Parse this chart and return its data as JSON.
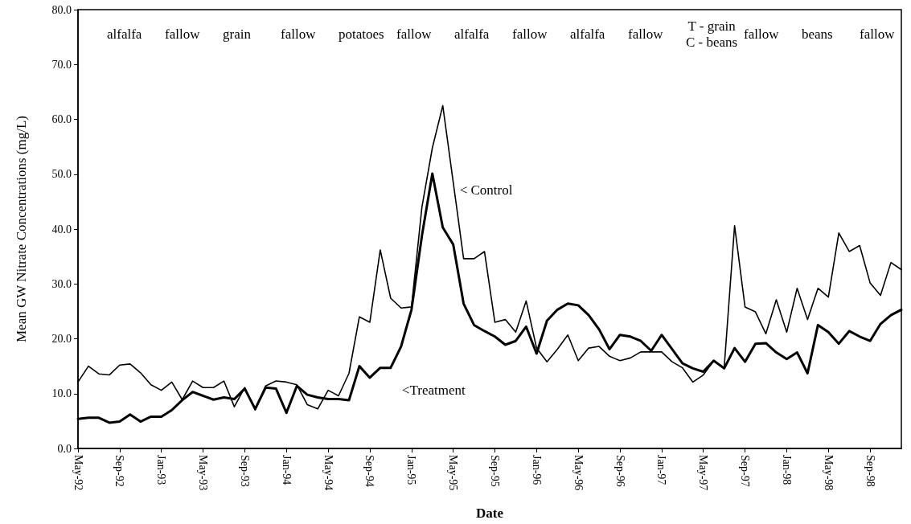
{
  "chart_data": {
    "type": "line",
    "xlabel": "Date",
    "ylabel": "Mean GW Nitrate Concentrations (mg/L)",
    "categories": [
      "May-92",
      null,
      null,
      null,
      "Sep-92",
      null,
      null,
      null,
      "Jan-93",
      null,
      null,
      null,
      "May-93",
      null,
      null,
      null,
      "Sep-93",
      null,
      null,
      null,
      "Jan-94",
      null,
      null,
      null,
      "May-94",
      null,
      null,
      null,
      "Sep-94",
      null,
      null,
      null,
      "Jan-95",
      null,
      null,
      null,
      "May-95",
      null,
      null,
      null,
      "Sep-95",
      null,
      null,
      null,
      "Jan-96",
      null,
      null,
      null,
      "May-96",
      null,
      null,
      null,
      "Sep-96",
      null,
      null,
      null,
      "Jan-97",
      null,
      null,
      null,
      "May-97",
      null,
      null,
      null,
      "Sep-97",
      null,
      null,
      null,
      "Jan-98",
      null,
      null,
      null,
      "May-98",
      null,
      null,
      null,
      "Sep-98",
      null,
      null,
      null
    ],
    "series": [
      {
        "name": "< Control",
        "color": "#000000",
        "values": [
          12.1,
          15.0,
          13.6,
          13.4,
          15.2,
          15.4,
          13.8,
          11.6,
          10.6,
          12.1,
          8.9,
          12.3,
          11.1,
          11.1,
          12.3,
          7.6,
          11.1,
          7.0,
          11.4,
          12.3,
          12.1,
          11.6,
          8.0,
          7.2,
          10.6,
          9.6,
          13.7,
          24.0,
          23.0,
          36.2,
          27.4,
          25.6,
          25.8,
          44.0,
          54.8,
          62.5,
          48.6,
          34.6,
          34.6,
          35.9,
          23.0,
          23.5,
          21.2,
          26.9,
          18.3,
          15.8,
          18.1,
          20.7,
          16.0,
          18.3,
          18.6,
          16.8,
          16.0,
          16.5,
          17.6,
          17.6,
          17.6,
          15.8,
          14.7,
          12.1,
          13.4,
          16.0,
          14.7,
          40.6,
          25.8,
          24.9,
          20.9,
          27.1,
          21.2,
          29.2,
          23.5,
          29.2,
          27.6,
          39.3,
          35.9,
          37.0,
          30.2,
          27.9,
          33.9,
          32.6
        ]
      },
      {
        "name": "<Treatment",
        "color": "#000000",
        "values": [
          5.4,
          5.6,
          5.6,
          4.7,
          4.9,
          6.2,
          4.9,
          5.8,
          5.8,
          7.0,
          8.8,
          10.3,
          9.6,
          8.9,
          9.3,
          9.0,
          10.9,
          7.2,
          11.1,
          10.9,
          6.5,
          11.4,
          9.8,
          9.3,
          9.0,
          9.0,
          8.8,
          15.0,
          12.9,
          14.7,
          14.7,
          18.6,
          25.3,
          38.8,
          50.1,
          40.3,
          37.2,
          26.4,
          22.5,
          21.4,
          20.4,
          18.9,
          19.6,
          22.2,
          17.3,
          23.3,
          25.3,
          26.4,
          26.1,
          24.3,
          21.7,
          18.1,
          20.7,
          20.4,
          19.6,
          17.8,
          20.7,
          18.1,
          15.5,
          14.6,
          14.0,
          16.0,
          14.6,
          18.3,
          15.8,
          19.1,
          19.2,
          17.5,
          16.3,
          17.5,
          13.7,
          22.5,
          21.2,
          19.1,
          21.4,
          20.4,
          19.6,
          22.7,
          24.3,
          25.3
        ]
      }
    ],
    "ylim": [
      0,
      80
    ],
    "yticks": [
      {
        "value": 0,
        "label": "0.0"
      },
      {
        "value": 10,
        "label": "10.0"
      },
      {
        "value": 20,
        "label": "20.0"
      },
      {
        "value": 30,
        "label": "30.0"
      },
      {
        "value": 40,
        "label": "40.0"
      },
      {
        "value": 50,
        "label": "50.0"
      },
      {
        "value": 60,
        "label": "60.0"
      },
      {
        "value": 70,
        "label": "70.0"
      },
      {
        "value": 80,
        "label": "80.0"
      }
    ],
    "grid": false,
    "legend": false,
    "marker": "none",
    "line_style": "solid",
    "annotations": [
      "alfalfa",
      "fallow",
      "grain",
      "fallow",
      "potatoes",
      "fallow",
      "alfalfa",
      "fallow",
      "alfalfa",
      "fallow",
      "T - grain\nC - beans",
      "fallow",
      "beans",
      "fallow"
    ]
  }
}
